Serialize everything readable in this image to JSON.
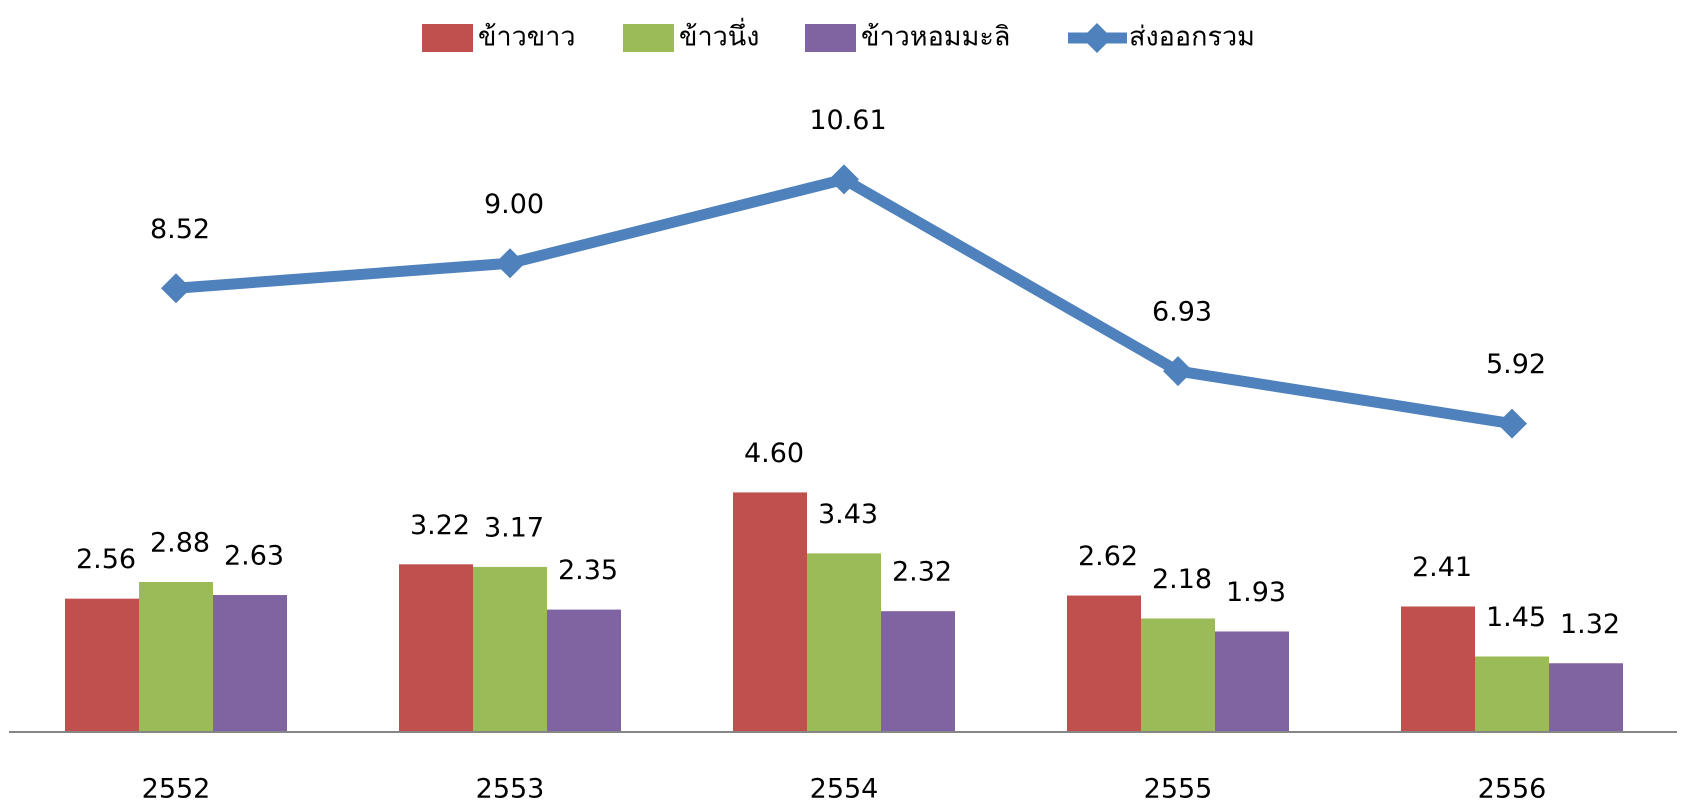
{
  "chart_data": {
    "type": "bar",
    "categories": [
      "2552",
      "2553",
      "2554",
      "2555",
      "2556"
    ],
    "series": [
      {
        "name": "ข้าวขาว",
        "color": "#c0504d",
        "values": [
          2.56,
          3.22,
          4.6,
          2.62,
          2.41
        ],
        "value_labels": [
          "2.56",
          "3.22",
          "4.60",
          "2.62",
          "2.41"
        ]
      },
      {
        "name": "ข้าวนึ่ง",
        "color": "#9bbb59",
        "values": [
          2.88,
          3.17,
          3.43,
          2.18,
          1.45
        ],
        "value_labels": [
          "2.88",
          "3.17",
          "3.43",
          "2.18",
          "1.45"
        ]
      },
      {
        "name": "ข้าวหอมมะลิ",
        "color": "#8064a2",
        "values": [
          2.63,
          2.35,
          2.32,
          1.93,
          1.32
        ],
        "value_labels": [
          "2.63",
          "2.35",
          "2.32",
          "1.93",
          "1.32"
        ]
      },
      {
        "name": "ส่งออกรวม",
        "type": "line",
        "color": "#4f81bd",
        "values": [
          8.52,
          9.0,
          10.61,
          6.93,
          5.92
        ],
        "value_labels": [
          "8.52",
          "9.00",
          "10.61",
          "6.93",
          "5.92"
        ]
      }
    ],
    "ylim": [
      0,
      12
    ],
    "legend": "top"
  }
}
